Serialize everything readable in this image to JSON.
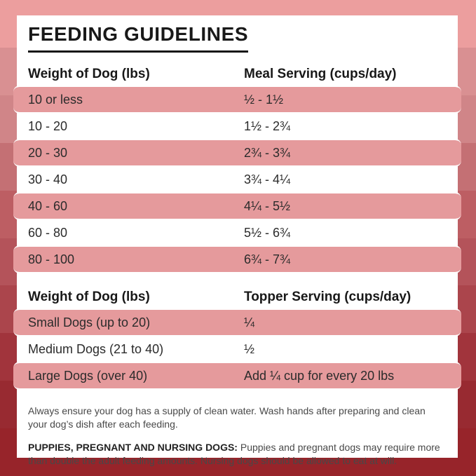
{
  "title": "FEEDING GUIDELINES",
  "meal_table": {
    "col1": "Weight of Dog (lbs)",
    "col2": "Meal Serving (cups/day)",
    "rows": [
      {
        "weight": "10 or less",
        "serving": "½ - 1½"
      },
      {
        "weight": "10 - 20",
        "serving": "1½ - 2¾"
      },
      {
        "weight": "20 - 30",
        "serving": "2¾ - 3¾"
      },
      {
        "weight": "30 - 40",
        "serving": "3¾ - 4¼"
      },
      {
        "weight": "40 - 60",
        "serving": "4¼ - 5½"
      },
      {
        "weight": "60 - 80",
        "serving": "5½ - 6¾"
      },
      {
        "weight": "80 - 100",
        "serving": "6¾ - 7¾"
      }
    ]
  },
  "topper_table": {
    "col1": "Weight of Dog (lbs)",
    "col2": "Topper Serving (cups/day)",
    "rows": [
      {
        "weight": "Small Dogs (up to 20)",
        "serving": "¼"
      },
      {
        "weight": "Medium Dogs (21 to 40)",
        "serving": "½"
      },
      {
        "weight": "Large Dogs (over 40)",
        "serving": "Add ¼ cup for every 20 lbs"
      }
    ]
  },
  "notes": {
    "water": "Always ensure your dog has a supply of clean water. Wash hands after preparing and clean your dog’s dish after each feeding.",
    "special_label": "PUPPIES, PREGNANT AND NURSING DOGS:",
    "special_text": "Puppies and pregnant dogs may require more than double the adult feeding amounts. Nursing dogs should be allowed to eat at will."
  },
  "colors": {
    "row_highlight": "#e59a9c",
    "card_background": "#ffffff",
    "stripes": [
      "#ec9e9e",
      "#d99092",
      "#d08588",
      "#c47074",
      "#bd5e63",
      "#b4535a",
      "#ab454c",
      "#a1343c",
      "#982a31",
      "#97242a"
    ]
  }
}
